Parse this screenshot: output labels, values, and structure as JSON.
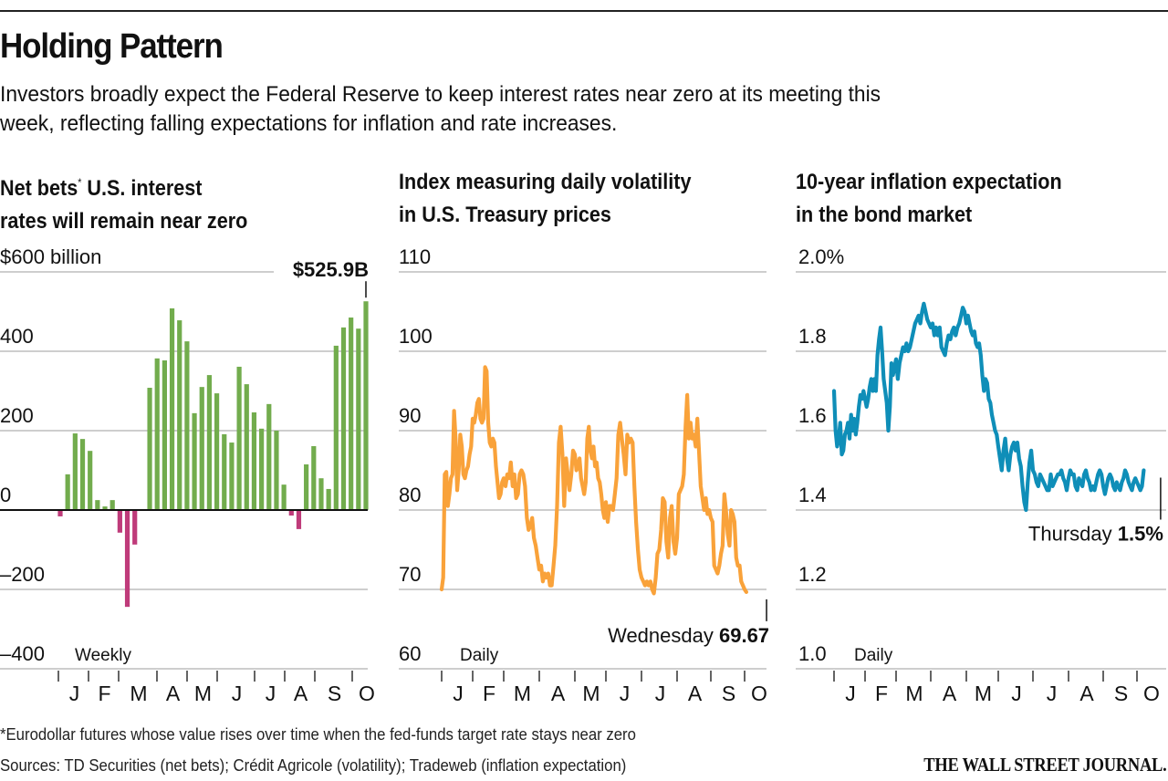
{
  "header": {
    "title": "Holding Pattern",
    "subtitle": "Investors broadly expect the Federal Reserve to keep interest rates near zero at its meeting this week, reflecting falling expectations for inflation and rate increases."
  },
  "footer": {
    "footnote": "*Eurodollar futures whose value rises over time when the fed-funds target rate stays near zero",
    "sources": "Sources: TD Securities (net bets); Crédit Agricole (volatility); Tradeweb (inflation expectation)",
    "brand": "THE WALL STREET JOURNAL."
  },
  "colors": {
    "positive_bar": "#72ac4d",
    "negative_bar": "#bf3b7a",
    "volatility_line": "#f9a23a",
    "inflation_line": "#0f8eb8",
    "gridline": "#bdbdbd",
    "zero_line": "#111111"
  },
  "chart_data": [
    {
      "type": "bar",
      "title_line1": "Net bets",
      "title_marker": "*",
      "title_line1_rest": " U.S. interest",
      "title_line2": "rates will remain near zero",
      "frequency_label": "Weekly",
      "ylabel": "",
      "ylim": [
        -400,
        600
      ],
      "yticks": [
        600,
        400,
        200,
        0,
        -200,
        -400
      ],
      "ytick_labels": [
        "$600 billion",
        "400",
        "200",
        "0",
        "–200",
        "–400"
      ],
      "month_labels": [
        "J",
        "F",
        "M",
        "A",
        "M",
        "J",
        "J",
        "A",
        "S",
        "O"
      ],
      "grid": true,
      "annotation": {
        "text": "$525.9B",
        "target": "last"
      },
      "values": [
        -16,
        90,
        193,
        179,
        149,
        25,
        9,
        25,
        -57,
        -244,
        -87,
        0,
        308,
        382,
        377,
        508,
        478,
        425,
        244,
        310,
        340,
        294,
        191,
        170,
        361,
        317,
        246,
        205,
        267,
        200,
        64,
        -14,
        -48,
        115,
        161,
        80,
        53,
        414,
        460,
        485,
        457,
        525.9
      ]
    },
    {
      "type": "line",
      "title_line1": "Index measuring daily volatility",
      "title_line2": "in U.S. Treasury prices",
      "frequency_label": "Daily",
      "ylim": [
        60,
        110
      ],
      "yticks": [
        110,
        100,
        90,
        80,
        70,
        60
      ],
      "ytick_labels": [
        "110",
        "100",
        "90",
        "80",
        "70",
        "60"
      ],
      "month_labels": [
        "J",
        "F",
        "M",
        "A",
        "M",
        "J",
        "J",
        "A",
        "S",
        "O"
      ],
      "grid": true,
      "annotation": {
        "label": "Wednesday",
        "value_text": "69.67"
      },
      "x_months": [
        0.0,
        0.05,
        0.1,
        0.15,
        0.2,
        0.25,
        0.3,
        0.35,
        0.4,
        0.45,
        0.5,
        0.55,
        0.6,
        0.65,
        0.7,
        0.75,
        0.8,
        0.85,
        0.9,
        0.95,
        1.0,
        1.05,
        1.1,
        1.15,
        1.2,
        1.25,
        1.3,
        1.35,
        1.4,
        1.45,
        1.5,
        1.55,
        1.6,
        1.65,
        1.7,
        1.75,
        1.8,
        1.85,
        1.9,
        1.95,
        2.0,
        2.05,
        2.1,
        2.15,
        2.2,
        2.25,
        2.3,
        2.35,
        2.4,
        2.45,
        2.5,
        2.55,
        2.6,
        2.65,
        2.7,
        2.75,
        2.8,
        2.85,
        2.9,
        2.95,
        3.0,
        3.05,
        3.1,
        3.15,
        3.2,
        3.25,
        3.3,
        3.35,
        3.4,
        3.45,
        3.5,
        3.55,
        3.6,
        3.65,
        3.7,
        3.75,
        3.8,
        3.85,
        3.9,
        3.95,
        4.0,
        4.05,
        4.1,
        4.15,
        4.2,
        4.25,
        4.3,
        4.35,
        4.4,
        4.45,
        4.5,
        4.55,
        4.6,
        4.65,
        4.7,
        4.75,
        4.8,
        4.85,
        4.9,
        4.95,
        5.0,
        5.05,
        5.1,
        5.15,
        5.2,
        5.25,
        5.3,
        5.35,
        5.4,
        5.45,
        5.5,
        5.55,
        5.6,
        5.65,
        5.7,
        5.75,
        5.8,
        5.85,
        5.9,
        5.95,
        6.0,
        6.05,
        6.1,
        6.15,
        6.2,
        6.25,
        6.3,
        6.35,
        6.4,
        6.45,
        6.5,
        6.55,
        6.6,
        6.65,
        6.7,
        6.75,
        6.8,
        6.85,
        6.9,
        6.95,
        7.0,
        7.05,
        7.1,
        7.15,
        7.2,
        7.25,
        7.3,
        7.35,
        7.4,
        7.45,
        7.5,
        7.55,
        7.6,
        7.65,
        7.7,
        7.75,
        7.8,
        7.85,
        7.9,
        7.95,
        8.0,
        8.05,
        8.1,
        8.15,
        8.2,
        8.25,
        8.3,
        8.35,
        8.4,
        8.45,
        8.5,
        8.55,
        8.6,
        8.65,
        8.7,
        8.75,
        8.8,
        8.85,
        8.9,
        8.95,
        9.0,
        9.05,
        9.1,
        9.15,
        9.2,
        9.25,
        9.3,
        9.35,
        9.4,
        9.45,
        9.5,
        9.55,
        9.6,
        9.65
      ],
      "values": [
        70.0,
        71.5,
        84.5,
        84.8,
        80.5,
        82.0,
        84.0,
        84.5,
        92.5,
        89.0,
        82.5,
        85.0,
        89.5,
        88.0,
        84.5,
        84.0,
        85.0,
        85.5,
        87.0,
        88.0,
        91.5,
        91.0,
        92.0,
        93.5,
        94.0,
        91.5,
        91.0,
        91.5,
        98.0,
        97.5,
        91.0,
        88.5,
        88.0,
        89.0,
        88.5,
        85.5,
        83.5,
        81.5,
        82.0,
        83.5,
        84.0,
        83.0,
        84.5,
        84.0,
        86.0,
        83.0,
        84.5,
        81.5,
        82.0,
        84.5,
        85.0,
        84.5,
        83.0,
        79.0,
        77.5,
        78.0,
        79.0,
        76.5,
        75.5,
        74.0,
        72.5,
        73.0,
        71.0,
        72.0,
        71.5,
        72.0,
        70.5,
        70.5,
        73.0,
        75.5,
        80.5,
        88.5,
        90.5,
        87.0,
        80.5,
        86.5,
        84.5,
        82.5,
        84.5,
        87.5,
        87.0,
        85.0,
        85.5,
        86.5,
        84.0,
        83.0,
        82.0,
        83.5,
        89.0,
        90.5,
        87.5,
        86.5,
        88.0,
        85.5,
        86.0,
        84.0,
        83.5,
        82.0,
        80.0,
        79.0,
        81.0,
        78.5,
        80.5,
        80.5,
        80.0,
        82.0,
        84.0,
        89.5,
        91.0,
        89.0,
        87.0,
        84.5,
        89.5,
        88.5,
        89.0,
        88.5,
        83.0,
        78.5,
        75.0,
        72.5,
        71.5,
        71.0,
        70.5,
        71.0,
        70.5,
        71.0,
        70.0,
        69.5,
        71.5,
        74.5,
        75.0,
        77.5,
        81.5,
        81.0,
        76.0,
        74.0,
        79.0,
        80.5,
        76.0,
        74.5,
        76.5,
        82.0,
        82.5,
        83.0,
        84.5,
        90.5,
        94.5,
        89.0,
        91.0,
        89.0,
        89.5,
        88.0,
        91.5,
        87.5,
        83.0,
        81.5,
        80.0,
        81.5,
        79.5,
        80.0,
        79.0,
        78.5,
        73.0,
        72.5,
        72.0,
        73.0,
        74.5,
        75.5,
        82.0,
        80.0,
        77.0,
        75.5,
        80.0,
        79.5,
        78.5,
        74.0,
        73.0,
        73.0,
        71.0,
        70.5,
        70.0,
        69.67
      ]
    },
    {
      "type": "line",
      "title_line1": "10-year inflation expectation",
      "title_line2": "in the bond market",
      "frequency_label": "Daily",
      "ylim": [
        1.0,
        2.0
      ],
      "yticks": [
        2.0,
        1.8,
        1.6,
        1.4,
        1.2,
        1.0
      ],
      "ytick_labels": [
        "2.0%",
        "1.8",
        "1.6",
        "1.4",
        "1.2",
        "1.0"
      ],
      "month_labels": [
        "J",
        "F",
        "M",
        "A",
        "M",
        "J",
        "J",
        "A",
        "S",
        "O"
      ],
      "grid": true,
      "annotation": {
        "label": "Thursday",
        "value_text": "1.5%"
      },
      "x_months": [
        0.0,
        0.05,
        0.1,
        0.15,
        0.2,
        0.25,
        0.3,
        0.35,
        0.4,
        0.45,
        0.5,
        0.55,
        0.6,
        0.65,
        0.7,
        0.75,
        0.8,
        0.85,
        0.9,
        0.95,
        1.0,
        1.05,
        1.1,
        1.15,
        1.2,
        1.25,
        1.3,
        1.35,
        1.4,
        1.45,
        1.5,
        1.55,
        1.6,
        1.65,
        1.7,
        1.75,
        1.8,
        1.85,
        1.9,
        1.95,
        2.0,
        2.05,
        2.1,
        2.15,
        2.2,
        2.25,
        2.3,
        2.35,
        2.4,
        2.45,
        2.5,
        2.55,
        2.6,
        2.65,
        2.7,
        2.75,
        2.8,
        2.85,
        2.9,
        2.95,
        3.0,
        3.05,
        3.1,
        3.15,
        3.2,
        3.25,
        3.3,
        3.35,
        3.4,
        3.45,
        3.5,
        3.55,
        3.6,
        3.65,
        3.7,
        3.75,
        3.8,
        3.85,
        3.9,
        3.95,
        4.0,
        4.05,
        4.1,
        4.15,
        4.2,
        4.25,
        4.3,
        4.35,
        4.4,
        4.45,
        4.5,
        4.55,
        4.6,
        4.65,
        4.7,
        4.75,
        4.8,
        4.85,
        4.9,
        4.95,
        5.0,
        5.05,
        5.1,
        5.15,
        5.2,
        5.25,
        5.3,
        5.35,
        5.4,
        5.45,
        5.5,
        5.55,
        5.6,
        5.65,
        5.7,
        5.75,
        5.8,
        5.85,
        5.9,
        5.95,
        6.0,
        6.05,
        6.1,
        6.15,
        6.2,
        6.25,
        6.3,
        6.35,
        6.4,
        6.45,
        6.5,
        6.55,
        6.6,
        6.65,
        6.7,
        6.75,
        6.8,
        6.85,
        6.9,
        6.95,
        7.0,
        7.05,
        7.1,
        7.15,
        7.2,
        7.25,
        7.3,
        7.35,
        7.4,
        7.45,
        7.5,
        7.55,
        7.6,
        7.65,
        7.7,
        7.75,
        7.8,
        7.85,
        7.9,
        7.95,
        8.0,
        8.05,
        8.1,
        8.15,
        8.2,
        8.25,
        8.3,
        8.35,
        8.4,
        8.45,
        8.5,
        8.55,
        8.6,
        8.65,
        8.7,
        8.75,
        8.8,
        8.85,
        8.9,
        8.95,
        9.0,
        9.05,
        9.1,
        9.15,
        9.2,
        9.25,
        9.3,
        9.35,
        9.4,
        9.45,
        9.5,
        9.55,
        9.6,
        9.65,
        9.7
      ],
      "values": [
        1.7,
        1.6,
        1.56,
        1.58,
        1.62,
        1.54,
        1.55,
        1.59,
        1.6,
        1.62,
        1.58,
        1.64,
        1.6,
        1.63,
        1.59,
        1.62,
        1.66,
        1.69,
        1.68,
        1.7,
        1.68,
        1.66,
        1.68,
        1.71,
        1.73,
        1.7,
        1.73,
        1.7,
        1.79,
        1.83,
        1.86,
        1.8,
        1.73,
        1.7,
        1.67,
        1.6,
        1.66,
        1.77,
        1.74,
        1.76,
        1.78,
        1.73,
        1.77,
        1.79,
        1.81,
        1.8,
        1.82,
        1.8,
        1.81,
        1.83,
        1.85,
        1.87,
        1.88,
        1.89,
        1.87,
        1.9,
        1.92,
        1.9,
        1.88,
        1.87,
        1.86,
        1.87,
        1.84,
        1.86,
        1.84,
        1.86,
        1.81,
        1.8,
        1.79,
        1.82,
        1.84,
        1.83,
        1.85,
        1.86,
        1.84,
        1.86,
        1.87,
        1.89,
        1.91,
        1.9,
        1.87,
        1.89,
        1.87,
        1.85,
        1.84,
        1.85,
        1.82,
        1.81,
        1.82,
        1.79,
        1.74,
        1.7,
        1.73,
        1.72,
        1.68,
        1.67,
        1.64,
        1.62,
        1.6,
        1.59,
        1.56,
        1.53,
        1.5,
        1.55,
        1.58,
        1.53,
        1.5,
        1.54,
        1.56,
        1.57,
        1.55,
        1.57,
        1.53,
        1.51,
        1.46,
        1.42,
        1.4,
        1.47,
        1.52,
        1.55,
        1.5,
        1.49,
        1.47,
        1.46,
        1.49,
        1.48,
        1.47,
        1.46,
        1.45,
        1.45,
        1.49,
        1.46,
        1.47,
        1.48,
        1.49,
        1.49,
        1.5,
        1.48,
        1.47,
        1.45,
        1.48,
        1.5,
        1.49,
        1.49,
        1.46,
        1.45,
        1.48,
        1.47,
        1.46,
        1.49,
        1.5,
        1.48,
        1.47,
        1.45,
        1.46,
        1.45,
        1.47,
        1.49,
        1.5,
        1.49,
        1.46,
        1.44,
        1.46,
        1.48,
        1.49,
        1.48,
        1.46,
        1.45,
        1.47,
        1.46,
        1.45,
        1.47,
        1.48,
        1.5,
        1.49,
        1.47,
        1.46,
        1.45,
        1.47,
        1.48,
        1.47,
        1.46,
        1.45,
        1.46,
        1.5
      ]
    }
  ]
}
